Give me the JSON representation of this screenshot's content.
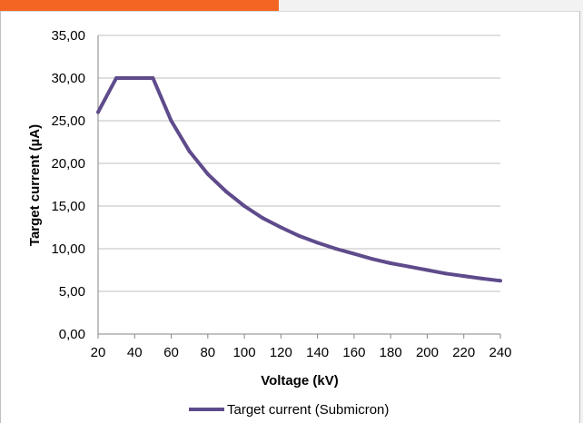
{
  "chart_data": {
    "type": "line",
    "xlabel": "Voltage (kV)",
    "ylabel": "Target current (µA)",
    "xlim": [
      20,
      240
    ],
    "ylim": [
      0,
      35
    ],
    "x_ticks": [
      "20",
      "40",
      "60",
      "80",
      "100",
      "120",
      "140",
      "160",
      "180",
      "200",
      "220",
      "240"
    ],
    "y_ticks": [
      "0,00",
      "5,00",
      "10,00",
      "15,00",
      "20,00",
      "25,00",
      "30,00",
      "35,00"
    ],
    "grid": "horizontal",
    "legend_position": "bottom",
    "series": [
      {
        "name": "Target current (Submicron)",
        "color": "#5e4b8b",
        "x": [
          20,
          30,
          40,
          50,
          60,
          70,
          80,
          90,
          100,
          110,
          120,
          130,
          140,
          150,
          160,
          170,
          180,
          190,
          200,
          210,
          220,
          230,
          240
        ],
        "y": [
          26.0,
          30.0,
          30.0,
          30.0,
          25.0,
          21.4,
          18.75,
          16.7,
          15.0,
          13.6,
          12.5,
          11.5,
          10.7,
          10.0,
          9.4,
          8.8,
          8.3,
          7.9,
          7.5,
          7.1,
          6.8,
          6.5,
          6.25
        ]
      }
    ]
  },
  "colors": {
    "header_tab": "#f26522",
    "gridline": "#bfbfbf",
    "axis": "#868686"
  }
}
